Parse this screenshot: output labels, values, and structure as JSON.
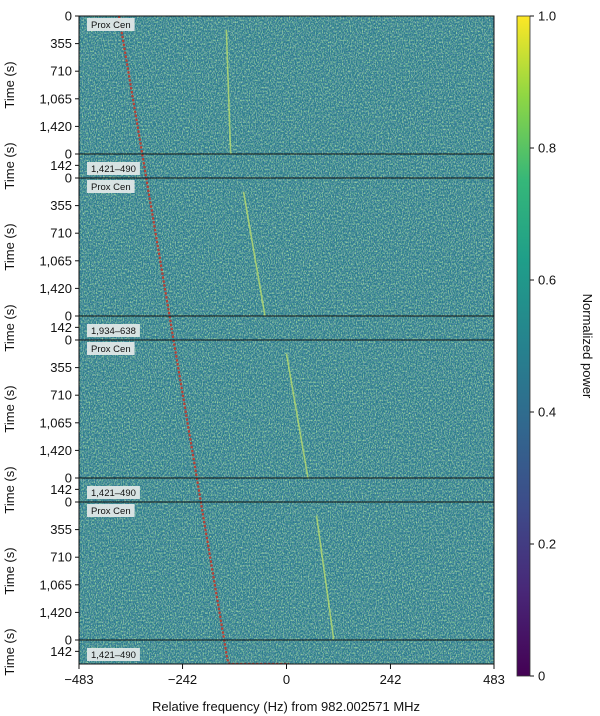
{
  "chart_data": {
    "type": "heatmap",
    "xlabel": "Relative frequency (Hz) from 982.002571 MHz",
    "xlim": [
      -483,
      483
    ],
    "x_ticks": [
      {
        "value": -483,
        "label": "−483"
      },
      {
        "value": -242,
        "label": "−242"
      },
      {
        "value": 0,
        "label": "0"
      },
      {
        "value": 242,
        "label": "242"
      },
      {
        "value": 483,
        "label": "483"
      }
    ],
    "ylabel": "Time (s)",
    "on_ticks": [
      {
        "value": 0,
        "label": "0"
      },
      {
        "value": 355,
        "label": "355"
      },
      {
        "value": 710,
        "label": "710"
      },
      {
        "value": 1065,
        "label": "1,065"
      },
      {
        "value": 1420,
        "label": "1,420"
      }
    ],
    "off_ticks": [
      {
        "value": 0,
        "label": "0"
      },
      {
        "value": 142,
        "label": "142"
      }
    ],
    "on_duration": 1775,
    "off_duration": 300,
    "colorbar": {
      "label": "Normalized power",
      "min": 0,
      "max": 1,
      "ticks": [
        {
          "value": 0,
          "label": "0"
        },
        {
          "value": 0.2,
          "label": "0.2"
        },
        {
          "value": 0.4,
          "label": "0.4"
        },
        {
          "value": 0.6,
          "label": "0.6"
        },
        {
          "value": 0.8,
          "label": "0.8"
        },
        {
          "value": 1.0,
          "label": "1.0"
        }
      ],
      "colormap": "viridis"
    },
    "panels": [
      {
        "label": "Prox Cen",
        "kind": "on"
      },
      {
        "label": "1,421–490",
        "kind": "off"
      },
      {
        "label": "Prox Cen",
        "kind": "on"
      },
      {
        "label": "1,934–638",
        "kind": "off"
      },
      {
        "label": "Prox Cen",
        "kind": "on"
      },
      {
        "label": "1,421–490",
        "kind": "off"
      },
      {
        "label": "Prox Cen",
        "kind": "on"
      },
      {
        "label": "1,421–490",
        "kind": "off"
      }
    ],
    "series": [
      {
        "style": "red dashed line",
        "points": [
          [
            -390,
            0
          ],
          [
            6,
            12935
          ]
        ]
      },
      {
        "style": "faint green drift line",
        "segments": [
          {
            "panel": 0,
            "x": [
              -140,
              -130
            ]
          },
          {
            "panel": 2,
            "x": [
              -100,
              -50
            ]
          },
          {
            "panel": 4,
            "x": [
              0,
              50
            ]
          },
          {
            "panel": 6,
            "x": [
              70,
              110
            ]
          }
        ]
      }
    ]
  }
}
